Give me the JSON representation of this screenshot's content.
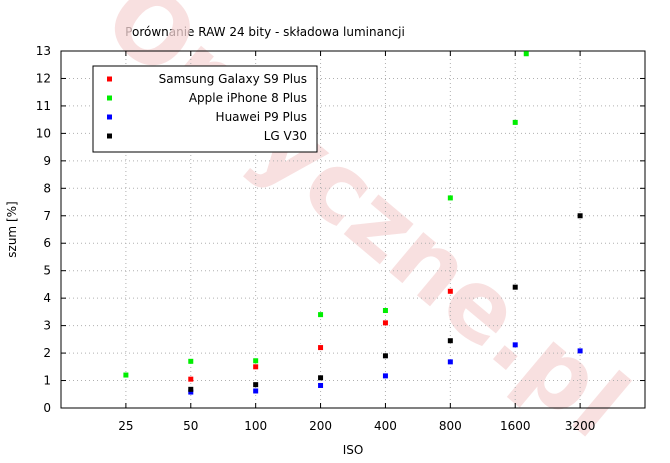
{
  "chart_data": {
    "type": "scatter",
    "title": "Porównanie RAW 24 bity - składowa luminancji",
    "xlabel": "ISO",
    "ylabel": "szum [%]",
    "x_scale": "log2",
    "x_ticks": [
      25,
      50,
      100,
      200,
      400,
      800,
      1600,
      3200
    ],
    "xlim": [
      12.5,
      6400
    ],
    "ylim": [
      0,
      13
    ],
    "y_ticks": [
      0,
      1,
      2,
      3,
      4,
      5,
      6,
      7,
      8,
      9,
      10,
      11,
      12,
      13
    ],
    "grid": true,
    "legend_position": "top-left",
    "watermark": "Optyczne.pl",
    "series": [
      {
        "name": "Samsung Galaxy S9 Plus",
        "color": "#ff0000",
        "points": [
          [
            50,
            1.05
          ],
          [
            100,
            1.5
          ],
          [
            200,
            2.2
          ],
          [
            400,
            3.1
          ],
          [
            800,
            4.25
          ]
        ]
      },
      {
        "name": "Apple iPhone 8 Plus",
        "color": "#00ee00",
        "points": [
          [
            25,
            1.2
          ],
          [
            50,
            1.7
          ],
          [
            100,
            1.72
          ],
          [
            200,
            3.4
          ],
          [
            400,
            3.55
          ],
          [
            800,
            7.65
          ],
          [
            1600,
            10.4
          ],
          [
            1800,
            12.9
          ]
        ]
      },
      {
        "name": "Huawei P9 Plus",
        "color": "#0000ff",
        "points": [
          [
            50,
            0.58
          ],
          [
            100,
            0.62
          ],
          [
            200,
            0.82
          ],
          [
            400,
            1.17
          ],
          [
            800,
            1.68
          ],
          [
            1600,
            2.3
          ],
          [
            3200,
            2.08
          ]
        ]
      },
      {
        "name": "LG V30",
        "color": "#000000",
        "points": [
          [
            50,
            0.68
          ],
          [
            100,
            0.85
          ],
          [
            200,
            1.1
          ],
          [
            400,
            1.9
          ],
          [
            800,
            2.45
          ],
          [
            1600,
            4.4
          ],
          [
            3200,
            7.0
          ]
        ]
      }
    ]
  }
}
